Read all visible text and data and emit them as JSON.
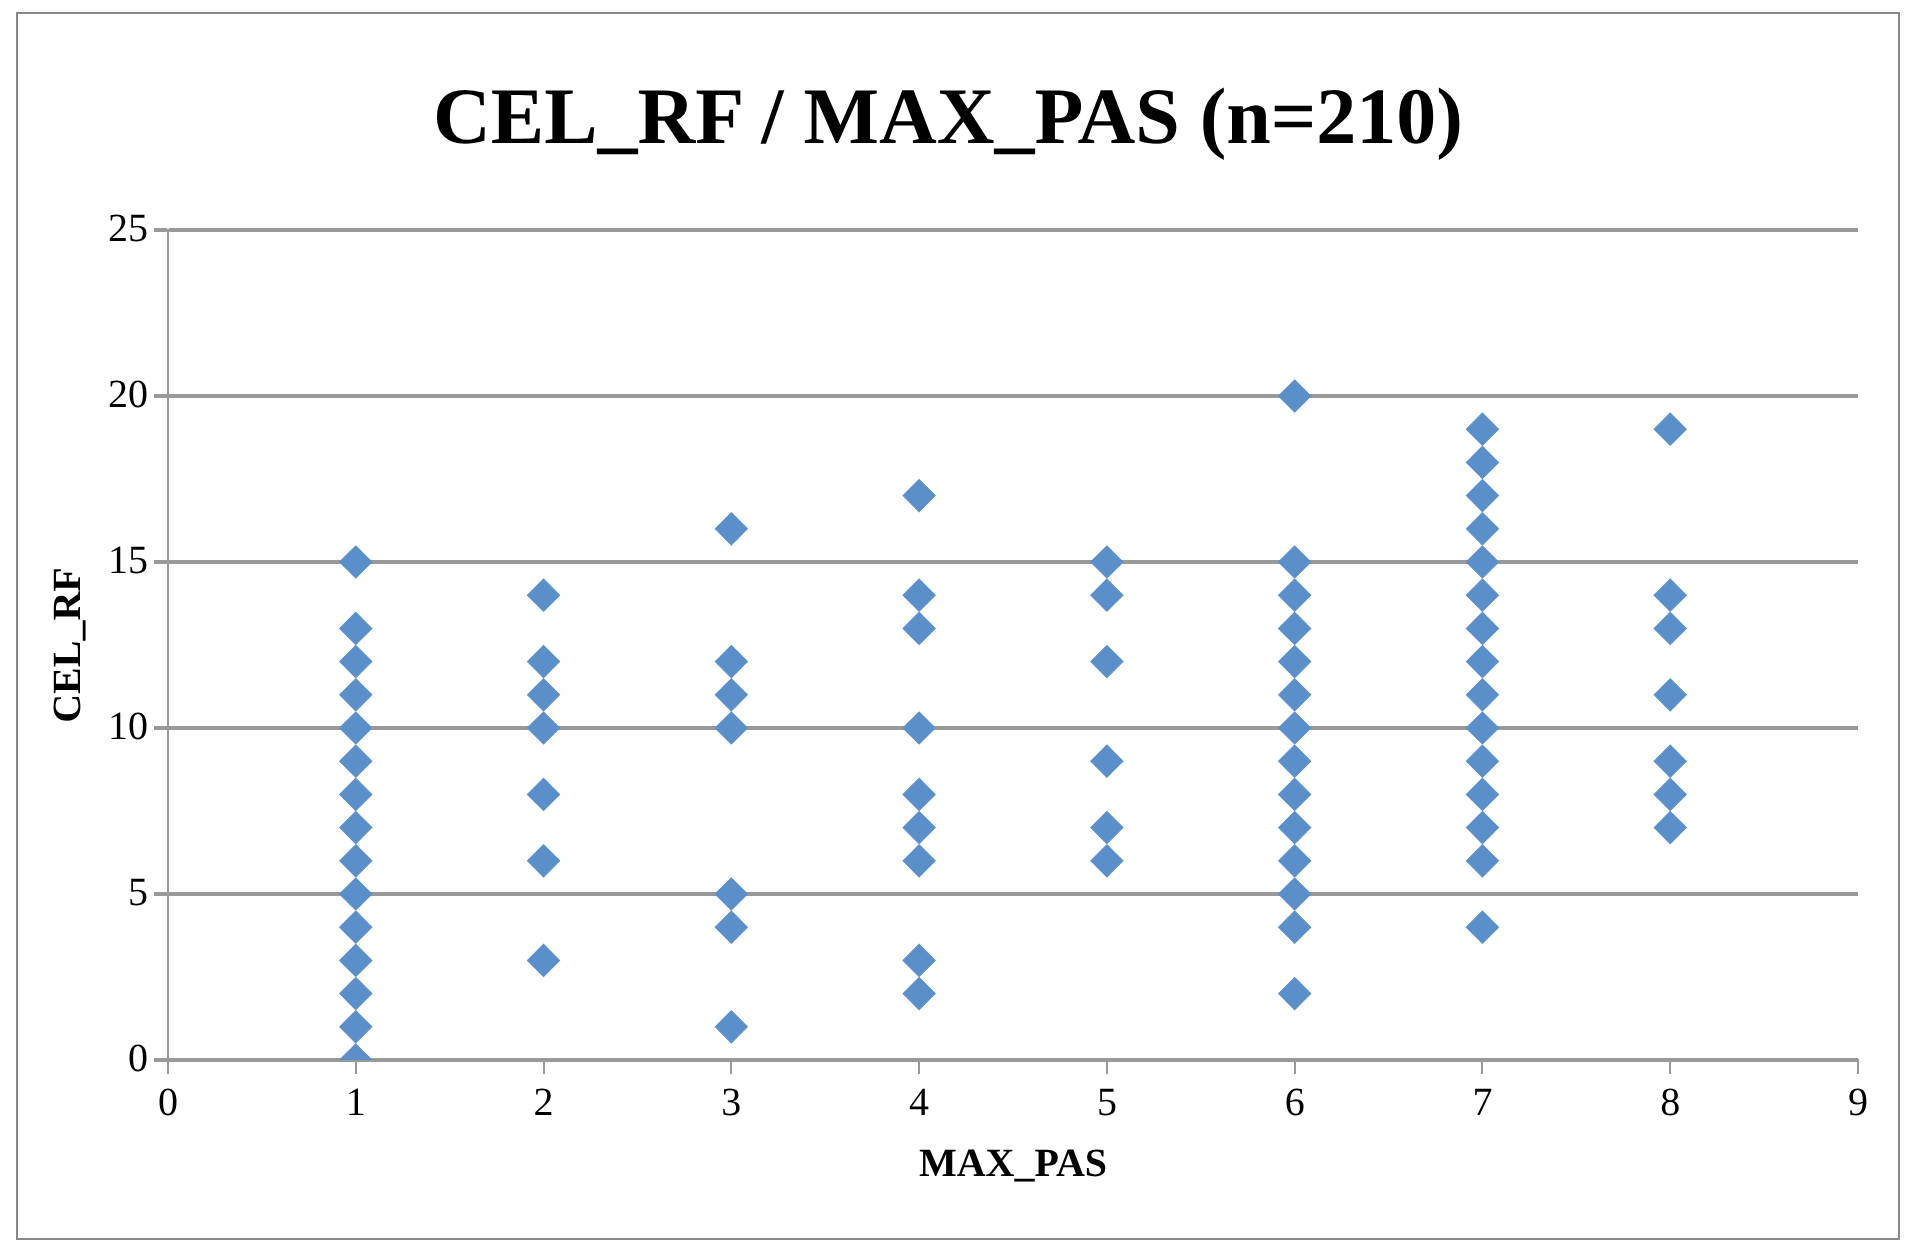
{
  "chart_data": {
    "type": "scatter",
    "title": "CEL_RF / MAX_PAS (n=210)",
    "xlabel": "MAX_PAS",
    "ylabel": "CEL_RF",
    "series": [
      {
        "color": "#5b8fca",
        "x": [
          1,
          1,
          1,
          1,
          1,
          1,
          1,
          1,
          1,
          1,
          1,
          1,
          1,
          1,
          1,
          2,
          2,
          2,
          2,
          2,
          2,
          2,
          3,
          3,
          3,
          3,
          3,
          3,
          3,
          4,
          4,
          4,
          4,
          4,
          4,
          4,
          4,
          4,
          5,
          5,
          5,
          5,
          5,
          5,
          6,
          6,
          6,
          6,
          6,
          6,
          6,
          6,
          6,
          6,
          6,
          6,
          6,
          6,
          7,
          7,
          7,
          7,
          7,
          7,
          7,
          7,
          7,
          7,
          7,
          7,
          7,
          7,
          7,
          8,
          8,
          8,
          8,
          8,
          8,
          8
        ],
        "values": [
          0,
          1,
          2,
          3,
          4,
          5,
          6,
          7,
          8,
          9,
          10,
          11,
          12,
          13,
          15,
          3,
          6,
          8,
          10,
          11,
          12,
          14,
          1,
          4,
          5,
          10,
          11,
          12,
          16,
          2,
          3,
          6,
          7,
          8,
          10,
          13,
          14,
          17,
          6,
          7,
          9,
          12,
          14,
          15,
          2,
          4,
          5,
          6,
          7,
          8,
          9,
          10,
          11,
          12,
          13,
          14,
          15,
          20,
          4,
          6,
          7,
          8,
          9,
          10,
          11,
          12,
          13,
          14,
          15,
          16,
          17,
          18,
          19,
          7,
          8,
          9,
          11,
          13,
          14,
          19
        ]
      }
    ],
    "xlim": [
      0,
      9
    ],
    "xticks": [
      0,
      1,
      2,
      3,
      4,
      5,
      6,
      7,
      8,
      9
    ],
    "ylim": [
      0,
      25
    ],
    "yticks": [
      0,
      5,
      10,
      15,
      20,
      25
    ],
    "grid": "y",
    "marker": "diamond",
    "legend": false
  }
}
